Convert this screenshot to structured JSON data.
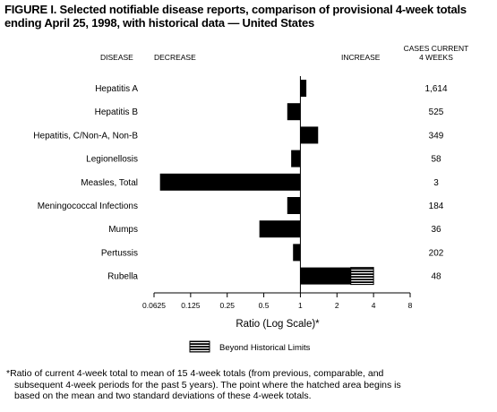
{
  "title_lines": [
    "FIGURE I. Selected notifiable disease reports, comparison of provisional 4-week totals",
    "ending April 25, 1998, with historical data — United States"
  ],
  "footnote_lines": [
    "*Ratio of current 4-week total to mean of 15 4-week totals (from previous, comparable, and",
    "subsequent 4-week periods for the past 5 years). The point where the hatched area begins is",
    "based on the mean and two standard deviations of these 4-week totals."
  ],
  "chart_data": {
    "type": "bar",
    "orientation": "horizontal",
    "headers": {
      "disease": "DISEASE",
      "decrease": "DECREASE",
      "increase": "INCREASE",
      "cases_line1": "CASES CURRENT",
      "cases_line2": "4 WEEKS"
    },
    "categories": [
      "Hepatitis A",
      "Hepatitis B",
      "Hepatitis, C/Non-A, Non-B",
      "Legionellosis",
      "Measles, Total",
      "Meningococcal Infections",
      "Mumps",
      "Pertussis",
      "Rubella"
    ],
    "ratios": [
      1.12,
      0.78,
      1.4,
      0.84,
      0.07,
      0.78,
      0.46,
      0.87,
      4.0
    ],
    "beyond_historical_start": [
      null,
      null,
      null,
      null,
      null,
      null,
      null,
      null,
      2.6
    ],
    "cases": [
      "1,614",
      "525",
      "349",
      "58",
      "3",
      "184",
      "36",
      "202",
      "48"
    ],
    "xscale": "log2",
    "xlim": [
      0.0625,
      8
    ],
    "xticks": [
      0.0625,
      0.125,
      0.25,
      0.5,
      1,
      2,
      4,
      8
    ],
    "xtick_labels": [
      "0.0625",
      "0.125",
      "0.25",
      "0.5",
      "1",
      "2",
      "4",
      "8"
    ],
    "xlabel": "Ratio (Log Scale)*",
    "legend_label": "Beyond Historical Limits",
    "colors": {
      "bar": "#000000",
      "hatch": "#ffffff",
      "axis": "#000000"
    }
  }
}
